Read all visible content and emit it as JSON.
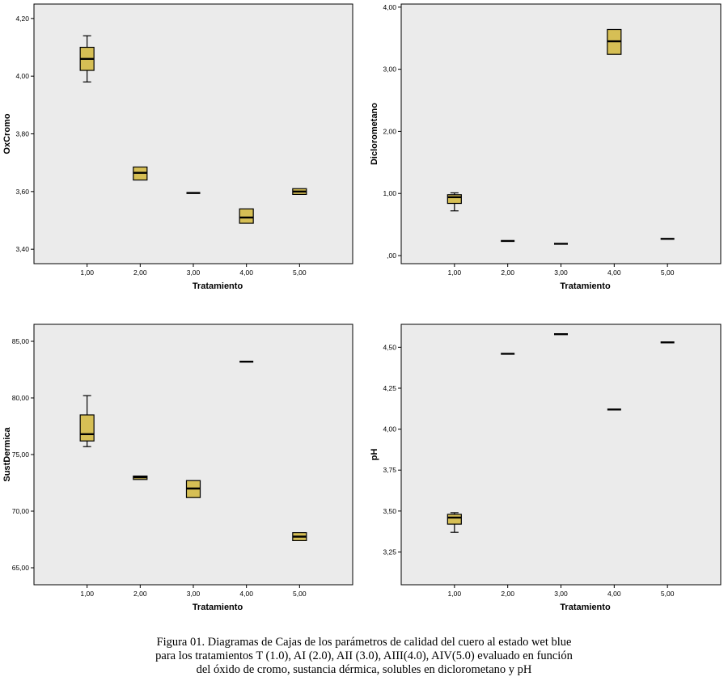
{
  "chart_data": [
    {
      "type": "boxplot",
      "xlabel": "Tratamiento",
      "ylabel": "OxCromo",
      "categories": [
        "1,00",
        "2,00",
        "3,00",
        "4,00",
        "5,00"
      ],
      "ylim": [
        3.35,
        4.25
      ],
      "yticks": [
        3.4,
        3.6,
        3.8,
        4.0,
        4.2
      ],
      "ytick_labels": [
        "3,40",
        "3,60",
        "3,80",
        "4,00",
        "4,20"
      ],
      "boxes": [
        {
          "min": 3.98,
          "q1": 4.02,
          "median": 4.06,
          "q3": 4.1,
          "max": 4.14
        },
        {
          "min": 3.64,
          "q1": 3.64,
          "median": 3.665,
          "q3": 3.685,
          "max": 3.685
        },
        {
          "min": 3.592,
          "q1": 3.592,
          "median": 3.595,
          "q3": 3.598,
          "max": 3.598
        },
        {
          "min": 3.49,
          "q1": 3.49,
          "median": 3.51,
          "q3": 3.54,
          "max": 3.54
        },
        {
          "min": 3.59,
          "q1": 3.59,
          "median": 3.6,
          "q3": 3.61,
          "max": 3.61
        }
      ],
      "box_color": "#d6bf55",
      "grid": false
    },
    {
      "type": "boxplot",
      "xlabel": "Tratamiento",
      "ylabel": "Diclorometano",
      "categories": [
        "1,00",
        "2,00",
        "3,00",
        "4,00",
        "5,00"
      ],
      "ylim": [
        -0.13,
        4.05
      ],
      "yticks": [
        0,
        1,
        2,
        3,
        4
      ],
      "ytick_labels": [
        ",00",
        "1,00",
        "2,00",
        "3,00",
        "4,00"
      ],
      "boxes": [
        {
          "min": 0.72,
          "q1": 0.84,
          "median": 0.94,
          "q3": 0.98,
          "max": 1.01
        },
        {
          "min": 0.235,
          "q1": 0.235,
          "median": 0.235,
          "q3": 0.235,
          "max": 0.235
        },
        {
          "min": 0.19,
          "q1": 0.19,
          "median": 0.19,
          "q3": 0.19,
          "max": 0.19
        },
        {
          "min": 3.24,
          "q1": 3.24,
          "median": 3.45,
          "q3": 3.64,
          "max": 3.64
        },
        {
          "min": 0.27,
          "q1": 0.27,
          "median": 0.27,
          "q3": 0.27,
          "max": 0.27
        }
      ],
      "box_color": "#d6bf55",
      "grid": false
    },
    {
      "type": "boxplot",
      "xlabel": "Tratamiento",
      "ylabel": "SustDermica",
      "categories": [
        "1,00",
        "2,00",
        "3,00",
        "4,00",
        "5,00"
      ],
      "ylim": [
        63.5,
        86.5
      ],
      "yticks": [
        65,
        70,
        75,
        80,
        85
      ],
      "ytick_labels": [
        "65,00",
        "70,00",
        "75,00",
        "80,00",
        "85,00"
      ],
      "boxes": [
        {
          "min": 75.7,
          "q1": 76.2,
          "median": 76.8,
          "q3": 78.5,
          "max": 80.2
        },
        {
          "min": 72.8,
          "q1": 72.8,
          "median": 73.0,
          "q3": 73.1,
          "max": 73.1
        },
        {
          "min": 71.2,
          "q1": 71.2,
          "median": 72.0,
          "q3": 72.7,
          "max": 72.7
        },
        {
          "min": 83.2,
          "q1": 83.2,
          "median": 83.2,
          "q3": 83.2,
          "max": 83.2
        },
        {
          "min": 67.4,
          "q1": 67.4,
          "median": 67.75,
          "q3": 68.1,
          "max": 68.1
        }
      ],
      "box_color": "#d6bf55",
      "grid": false
    },
    {
      "type": "boxplot",
      "xlabel": "Tratamiento",
      "ylabel": "pH",
      "categories": [
        "1,00",
        "2,00",
        "3,00",
        "4,00",
        "5,00"
      ],
      "ylim": [
        3.05,
        4.64
      ],
      "yticks": [
        3.25,
        3.5,
        3.75,
        4.0,
        4.25,
        4.5
      ],
      "ytick_labels": [
        "3,25",
        "3,50",
        "3,75",
        "4,00",
        "4,25",
        "4,50"
      ],
      "boxes": [
        {
          "min": 3.37,
          "q1": 3.42,
          "median": 3.46,
          "q3": 3.48,
          "max": 3.49
        },
        {
          "min": 4.46,
          "q1": 4.46,
          "median": 4.46,
          "q3": 4.46,
          "max": 4.46
        },
        {
          "min": 4.58,
          "q1": 4.58,
          "median": 4.58,
          "q3": 4.58,
          "max": 4.58
        },
        {
          "min": 4.12,
          "q1": 4.12,
          "median": 4.12,
          "q3": 4.12,
          "max": 4.12
        },
        {
          "min": 4.53,
          "q1": 4.53,
          "median": 4.53,
          "q3": 4.53,
          "max": 4.53
        }
      ],
      "box_color": "#d6bf55",
      "grid": false
    }
  ],
  "caption": {
    "line1": "Figura 01. Diagramas de Cajas de los parámetros de calidad del cuero al estado wet blue",
    "line2": "para los tratamientos T (1.0), AI (2.0), AII (3.0), AIII(4.0), AIV(5.0) evaluado en función",
    "line3": "del óxido de cromo, sustancia dérmica, solubles en diclorometano y pH"
  }
}
